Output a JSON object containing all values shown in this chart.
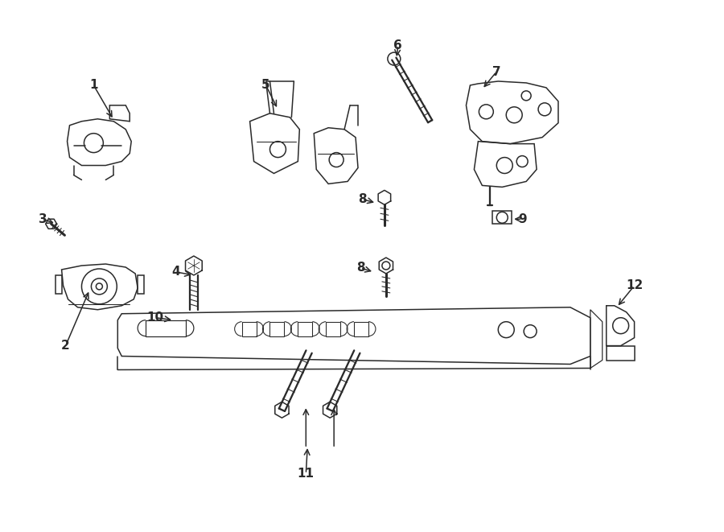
{
  "bg_color": "#ffffff",
  "line_color": "#2a2a2a",
  "lw": 1.1,
  "figsize": [
    9.0,
    6.61
  ],
  "dpi": 100
}
